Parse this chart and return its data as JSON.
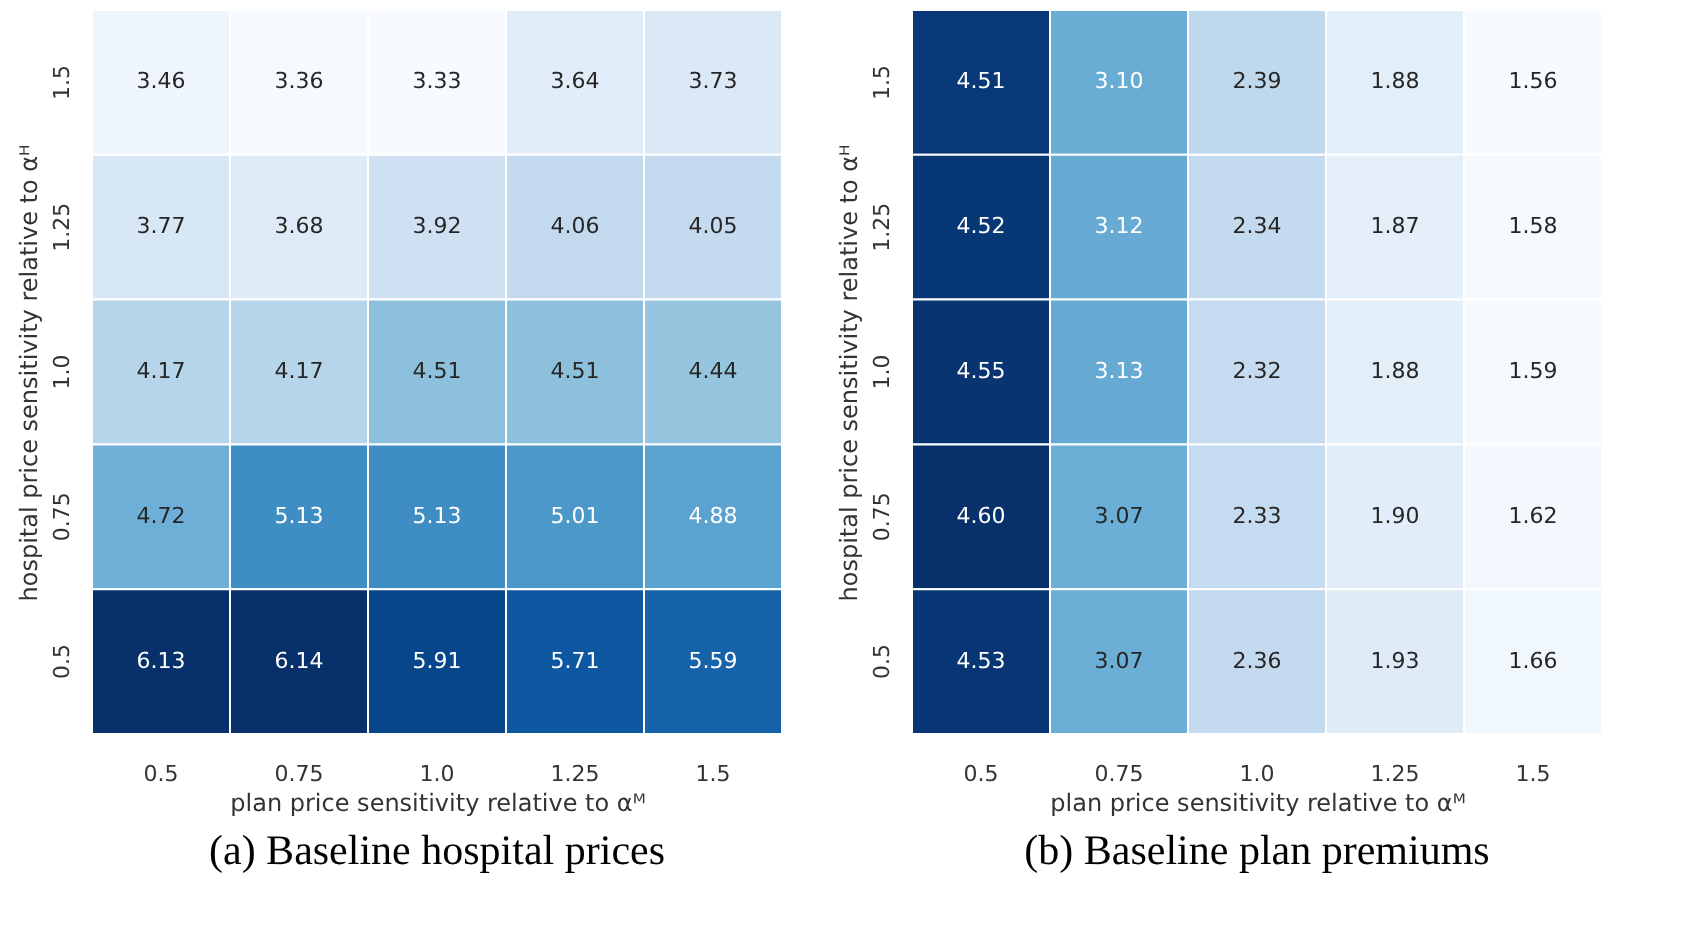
{
  "chart_data": [
    {
      "type": "heatmap",
      "title": "(a)  Baseline hospital prices",
      "xlabel": "plan price sensitivity relative to αᴹ",
      "ylabel": "hospital price sensitivity relative to αᴴ",
      "categories": [
        "0.5",
        "0.75",
        "1.0",
        "1.25",
        "1.5"
      ],
      "y_categories": [
        "1.5",
        "1.25",
        "1.0",
        "0.75",
        "0.5"
      ],
      "cells": [
        [
          3.46,
          3.36,
          3.33,
          3.64,
          3.73
        ],
        [
          3.77,
          3.68,
          3.92,
          4.06,
          4.05
        ],
        [
          4.17,
          4.17,
          4.51,
          4.51,
          4.44
        ],
        [
          4.72,
          5.13,
          5.13,
          5.01,
          4.88
        ],
        [
          6.13,
          6.14,
          5.91,
          5.71,
          5.59
        ]
      ],
      "cell_labels": [
        [
          "3.46",
          "3.36",
          "3.33",
          "3.64",
          "3.73"
        ],
        [
          "3.77",
          "3.68",
          "3.92",
          "4.06",
          "4.05"
        ],
        [
          "4.17",
          "4.17",
          "4.51",
          "4.51",
          "4.44"
        ],
        [
          "4.72",
          "5.13",
          "5.13",
          "5.01",
          "4.88"
        ],
        [
          "6.13",
          "6.14",
          "5.91",
          "5.71",
          "5.59"
        ]
      ]
    },
    {
      "type": "heatmap",
      "title": "(b)  Baseline plan premiums",
      "xlabel": "plan price sensitivity relative to αᴹ",
      "ylabel": "hospital price sensitivity relative to αᴴ",
      "categories": [
        "0.5",
        "0.75",
        "1.0",
        "1.25",
        "1.5"
      ],
      "y_categories": [
        "1.5",
        "1.25",
        "1.0",
        "0.75",
        "0.5"
      ],
      "cells": [
        [
          4.51,
          3.1,
          2.39,
          1.88,
          1.56
        ],
        [
          4.52,
          3.12,
          2.34,
          1.87,
          1.58
        ],
        [
          4.55,
          3.13,
          2.32,
          1.88,
          1.59
        ],
        [
          4.6,
          3.07,
          2.33,
          1.9,
          1.62
        ],
        [
          4.53,
          3.07,
          2.36,
          1.93,
          1.66
        ]
      ],
      "cell_labels": [
        [
          "4.51",
          "3.10",
          "2.39",
          "1.88",
          "1.56"
        ],
        [
          "4.52",
          "3.12",
          "2.34",
          "1.87",
          "1.58"
        ],
        [
          "4.55",
          "3.13",
          "2.32",
          "1.88",
          "1.59"
        ],
        [
          "4.60",
          "3.07",
          "2.33",
          "1.90",
          "1.62"
        ],
        [
          "4.53",
          "3.07",
          "2.36",
          "1.93",
          "1.66"
        ]
      ]
    }
  ]
}
